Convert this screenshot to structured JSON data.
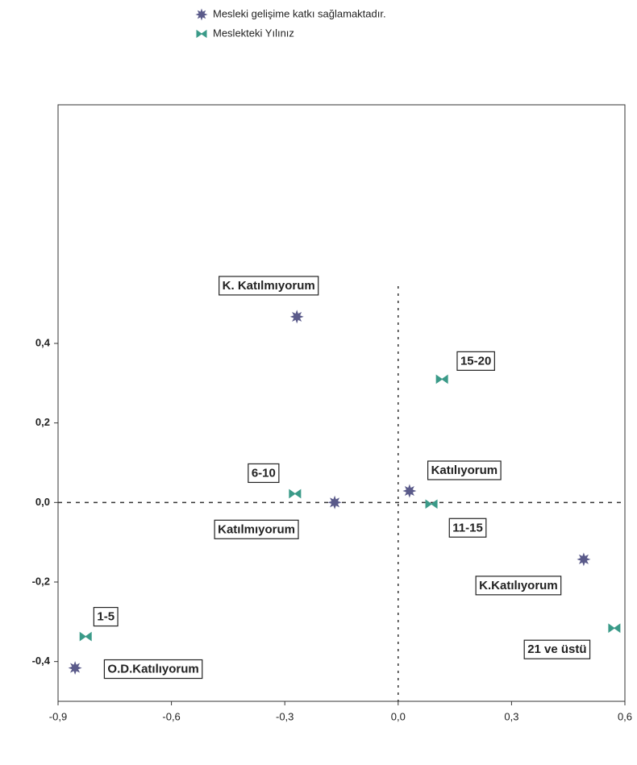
{
  "chart_data": {
    "type": "scatter",
    "series": [
      {
        "name": "Mesleki gelişime katkı sağlamaktadır.",
        "color": "#5a5a8a",
        "marker": "star",
        "labels": [
          "K. Katılmıyorum",
          "Katılmıyorum",
          "Katılıyorum",
          "K.Katılıyorum",
          "O.D.Katılıyorum"
        ],
        "x": [
          -0.268,
          -0.168,
          0.03,
          0.491,
          -0.855
        ],
        "values": [
          0.467,
          0.0,
          0.029,
          -0.143,
          -0.416
        ]
      },
      {
        "name": "Meslekteki Yılınız",
        "color": "#3a9a88",
        "marker": "bowtie",
        "labels": [
          "1-5",
          "6-10",
          "11-15",
          "15-20",
          "21 ve üstü"
        ],
        "x": [
          -0.827,
          -0.273,
          0.088,
          0.116,
          0.572
        ],
        "values": [
          -0.337,
          0.022,
          -0.004,
          0.31,
          -0.316
        ]
      }
    ],
    "xlim": [
      -0.9,
      0.6
    ],
    "xticks": [
      {
        "value": -0.9,
        "label": "-0,9"
      },
      {
        "value": -0.6,
        "label": "-0,6"
      },
      {
        "value": -0.3,
        "label": "-0,3"
      },
      {
        "value": 0.0,
        "label": "0,0"
      },
      {
        "value": 0.3,
        "label": "0,3"
      },
      {
        "value": 0.6,
        "label": "0,6"
      }
    ],
    "ylim": [
      -0.5,
      1.0
    ],
    "yticks": [
      {
        "value": -0.4,
        "label": "-0,4"
      },
      {
        "value": -0.2,
        "label": "-0,2"
      },
      {
        "value": 0.0,
        "label": "0,0"
      },
      {
        "value": 0.2,
        "label": "0,2"
      },
      {
        "value": 0.4,
        "label": "0,4"
      }
    ],
    "grid": false
  }
}
